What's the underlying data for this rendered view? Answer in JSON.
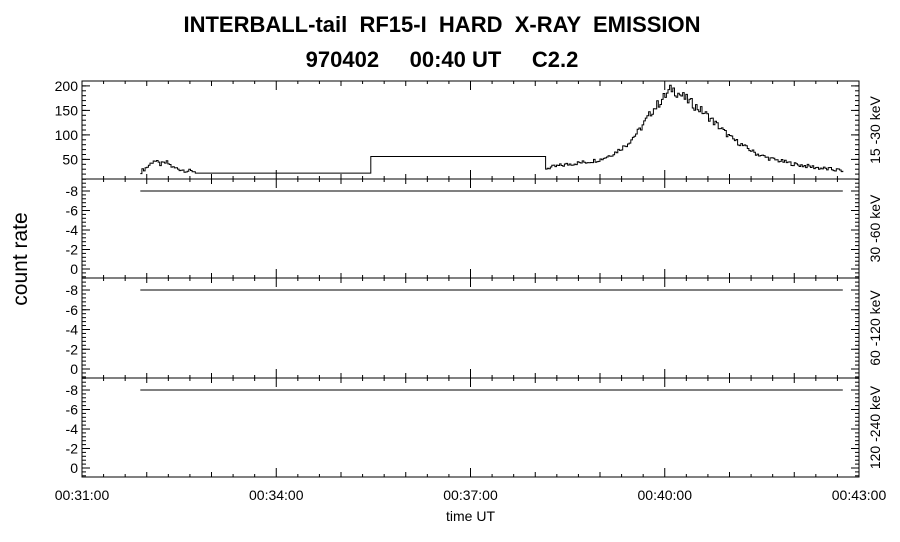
{
  "title_line1": "INTERBALL-tail  RF15-I  HARD  X-RAY  EMISSION",
  "title_line2": "970402     00:40 UT     C2.2",
  "chart_data": {
    "type": "line",
    "title": "INTERBALL-tail  RF15-I  HARD  X-RAY  EMISSION",
    "subtitle": "970402     00:40 UT     C2.2",
    "xlabel": "time UT",
    "ylabel": "count rate",
    "x_ticks": [
      "00:31:00",
      "00:34:00",
      "00:37:00",
      "00:40:00",
      "00:43:00"
    ],
    "x_range_minutes": [
      31,
      43
    ],
    "grid": false,
    "panels": [
      {
        "name": "15 -30 keV",
        "ylim": [
          10,
          210
        ],
        "y_ticks": [
          50,
          100,
          150,
          200
        ],
        "series": {
          "note_segments": "counts vs time (minute of hour)",
          "x": [
            31.9,
            32.0,
            32.1,
            32.2,
            32.3,
            32.4,
            32.5,
            32.6,
            32.7,
            32.75,
            35.45,
            35.46,
            38.15,
            38.16,
            38.4,
            38.6,
            38.8,
            39.0,
            39.2,
            39.4,
            39.6,
            39.8,
            40.0,
            40.1,
            40.2,
            40.4,
            40.6,
            40.8,
            41.0,
            41.2,
            41.4,
            41.6,
            41.8,
            42.0,
            42.2,
            42.4,
            42.6,
            42.75
          ],
          "y": [
            25,
            35,
            48,
            40,
            44,
            33,
            30,
            27,
            25,
            22,
            22,
            56,
            56,
            32,
            38,
            42,
            45,
            50,
            62,
            80,
            110,
            150,
            180,
            195,
            185,
            165,
            145,
            120,
            95,
            78,
            62,
            52,
            46,
            40,
            36,
            32,
            29,
            27
          ]
        }
      },
      {
        "name": "30 -60 keV",
        "ylim": [
          -9,
          1
        ],
        "y_ticks": [
          -8,
          -6,
          -4,
          -2,
          0
        ],
        "series": {
          "x": [
            31.9,
            42.75
          ],
          "y": [
            -8,
            -8
          ]
        }
      },
      {
        "name": "60 -120 keV",
        "ylim": [
          -9,
          1
        ],
        "y_ticks": [
          -8,
          -6,
          -4,
          -2,
          0
        ],
        "series": {
          "x": [
            31.9,
            42.75
          ],
          "y": [
            -8,
            -8
          ]
        }
      },
      {
        "name": "120 -240 keV",
        "ylim": [
          -9,
          1
        ],
        "y_ticks": [
          -8,
          -6,
          -4,
          -2,
          0
        ],
        "series": {
          "x": [
            31.9,
            42.75
          ],
          "y": [
            -8,
            -8
          ]
        }
      }
    ]
  }
}
